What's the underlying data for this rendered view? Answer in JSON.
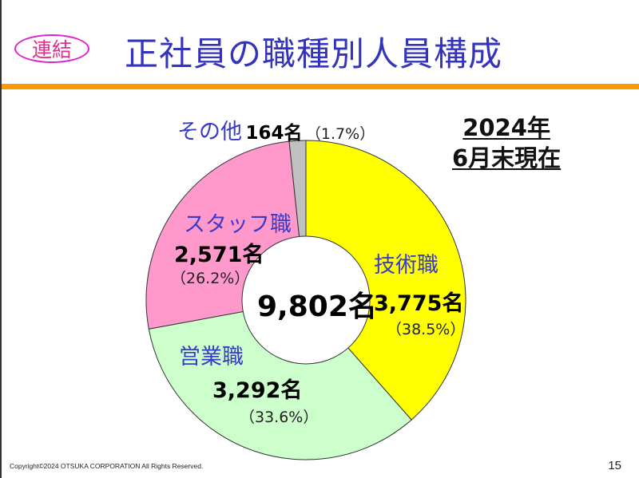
{
  "header": {
    "badge": "連結",
    "title": "正社員の職種別人員構成"
  },
  "as_of": {
    "line1": "2024年",
    "line2": "6月末現在"
  },
  "center_total": "9,802名",
  "segments": [
    {
      "name": "技術職",
      "count": "3,775名",
      "percent": "（38.5%）",
      "color": "#ffff00"
    },
    {
      "name": "営業職",
      "count": "3,292名",
      "percent": "（33.6%）",
      "color": "#ccffcc"
    },
    {
      "name": "スタッフ職",
      "count": "2,571名",
      "percent": "（26.2%）",
      "color": "#ff99cc"
    },
    {
      "name": "その他",
      "count": "164名",
      "percent": "（1.7%）",
      "color": "#c0c0c0"
    }
  ],
  "footer": {
    "copyright": "Copyright©2024 OTSUKA CORPORATION All Rights Reserved.",
    "page_number": "15"
  },
  "colors": {
    "title": "#3333bb",
    "badge": "#e0308a",
    "accent_bar": "#f89a00",
    "category_label": "#3a3ac8"
  },
  "chart_data": {
    "type": "pie",
    "variant": "donut",
    "title": "正社員の職種別人員構成",
    "subtitle": "2024年6月末現在",
    "center_label": "9,802名",
    "total": 9802,
    "categories": [
      "技術職",
      "営業職",
      "スタッフ職",
      "その他"
    ],
    "values": [
      3775,
      3292,
      2571,
      164
    ],
    "percentages": [
      38.5,
      33.6,
      26.2,
      1.7
    ],
    "colors": [
      "#ffff00",
      "#ccffcc",
      "#ff99cc",
      "#c0c0c0"
    ],
    "start_angle_deg": 0,
    "direction": "clockwise",
    "legend": "none (direct labels)"
  }
}
